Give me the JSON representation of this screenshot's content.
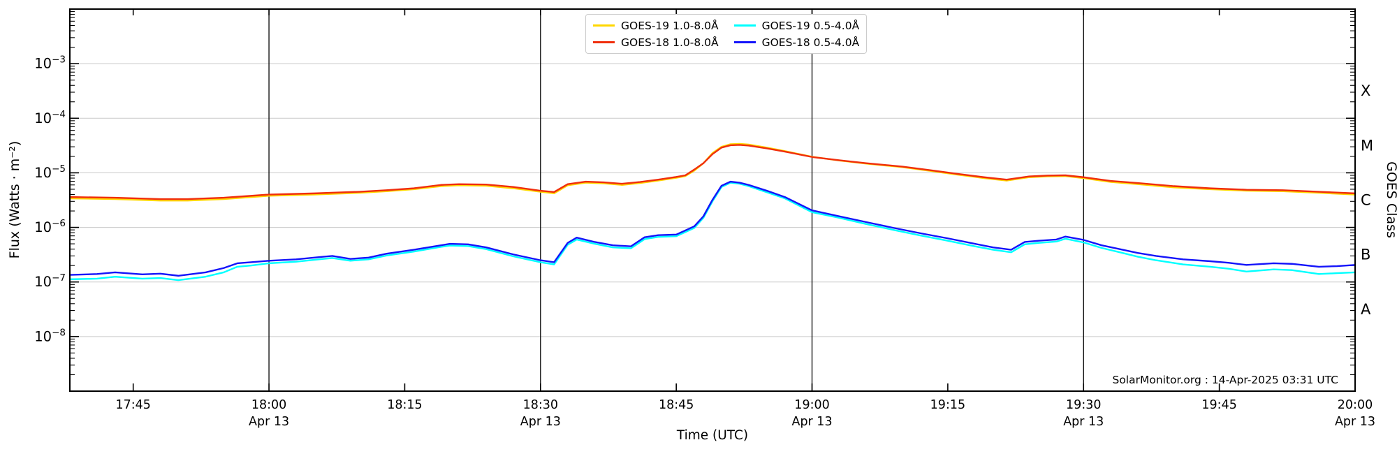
{
  "figure": {
    "credit": "SolarMonitor.org : 14-Apr-2025 03:31 UTC"
  },
  "axes": {
    "xlabel": "Time (UTC)",
    "ylabel_left": "Flux (Watts · m⁻²)",
    "ylabel_right": "GOES Class"
  },
  "legend": {
    "items": [
      {
        "label": "GOES-19 1.0-8.0Å",
        "color": "#FFD700"
      },
      {
        "label": "GOES-18 1.0-8.0Å",
        "color": "#F02E0C"
      },
      {
        "label": "GOES-19 0.5-4.0Å",
        "color": "#00FFFF"
      },
      {
        "label": "GOES-18 0.5-4.0Å",
        "color": "#1414FA"
      }
    ]
  },
  "chart_data": {
    "type": "line",
    "title": "",
    "xlabel": "Time (UTC)",
    "ylabel": "Flux (Watts · m⁻²)",
    "ylabel_right": "GOES Class",
    "grid": true,
    "legend_position": "top-center",
    "x_axis": {
      "unit": "minutes since 00:00 UTC, Apr 13",
      "range": [
        1058,
        1200
      ],
      "ticks": [
        {
          "minutes": 1065,
          "label": "17:45",
          "date": null,
          "vline": false
        },
        {
          "minutes": 1080,
          "label": "18:00",
          "date": "Apr 13",
          "vline": true
        },
        {
          "minutes": 1095,
          "label": "18:15",
          "date": null,
          "vline": false
        },
        {
          "minutes": 1110,
          "label": "18:30",
          "date": "Apr 13",
          "vline": true
        },
        {
          "minutes": 1125,
          "label": "18:45",
          "date": null,
          "vline": false
        },
        {
          "minutes": 1140,
          "label": "19:00",
          "date": "Apr 13",
          "vline": true
        },
        {
          "minutes": 1155,
          "label": "19:15",
          "date": null,
          "vline": false
        },
        {
          "minutes": 1170,
          "label": "19:30",
          "date": "Apr 13",
          "vline": true
        },
        {
          "minutes": 1185,
          "label": "19:45",
          "date": null,
          "vline": false
        },
        {
          "minutes": 1200,
          "label": "20:00",
          "date": "Apr 13",
          "vline": false
        }
      ]
    },
    "y_axis": {
      "scale": "log",
      "range": [
        1e-09,
        0.01
      ],
      "labeled_exponents": [
        -3,
        -4,
        -5,
        -6,
        -7,
        -8
      ]
    },
    "goes_class_labels": [
      {
        "label": "X",
        "mid_exponent": -3.5
      },
      {
        "label": "M",
        "mid_exponent": -4.5
      },
      {
        "label": "C",
        "mid_exponent": -5.5
      },
      {
        "label": "B",
        "mid_exponent": -6.5
      },
      {
        "label": "A",
        "mid_exponent": -7.5
      }
    ],
    "series": [
      {
        "name": "GOES-19 1.0-8.0Å",
        "color": "#FFD700",
        "x": [
          1058,
          1063,
          1068,
          1071,
          1075,
          1080,
          1085,
          1090,
          1093,
          1096,
          1099,
          1101,
          1104,
          1107,
          1110,
          1111.5,
          1113,
          1115,
          1117,
          1119,
          1121,
          1123,
          1125,
          1126,
          1127,
          1128,
          1129,
          1130,
          1131,
          1132,
          1133,
          1135,
          1137,
          1140,
          1143,
          1146,
          1150,
          1153,
          1156,
          1159,
          1161.5,
          1164,
          1166,
          1168,
          1170,
          1173,
          1176,
          1180,
          1184,
          1188,
          1192,
          1196,
          1200
        ],
        "y": [
          3.4e-06,
          3.3e-06,
          3.1e-06,
          3.1e-06,
          3.3e-06,
          3.8e-06,
          4e-06,
          4.3e-06,
          4.6e-06,
          5e-06,
          5.7e-06,
          5.9e-06,
          5.8e-06,
          5.2e-06,
          4.5e-06,
          4.2e-06,
          5.9e-06,
          6.6e-06,
          6.4e-06,
          6e-06,
          6.5e-06,
          7.2e-06,
          8.1e-06,
          8.7e-06,
          1.1e-05,
          1.5e-05,
          2.3e-05,
          3e-05,
          3.35e-05,
          3.4e-05,
          3.3e-05,
          2.9e-05,
          2.5e-05,
          1.97e-05,
          1.68e-05,
          1.47e-05,
          1.27e-05,
          1.09e-05,
          9.3e-06,
          8e-06,
          7.2e-06,
          8.3e-06,
          8.6e-06,
          8.7e-06,
          8e-06,
          6.8e-06,
          6.2e-06,
          5.4e-06,
          5e-06,
          4.7e-06,
          4.6e-06,
          4.3e-06,
          4e-06
        ]
      },
      {
        "name": "GOES-18 1.0-8.0Å",
        "color": "#F02E0C",
        "x": [
          1058,
          1063,
          1068,
          1071,
          1075,
          1080,
          1085,
          1090,
          1093,
          1096,
          1099,
          1101,
          1104,
          1107,
          1110,
          1111.5,
          1113,
          1115,
          1117,
          1119,
          1121,
          1123,
          1125,
          1126,
          1127,
          1128,
          1129,
          1130,
          1131,
          1132,
          1133,
          1135,
          1137,
          1140,
          1143,
          1146,
          1150,
          1153,
          1156,
          1159,
          1161.5,
          1164,
          1166,
          1168,
          1170,
          1173,
          1176,
          1180,
          1184,
          1188,
          1192,
          1196,
          1200
        ],
        "y": [
          3.6e-06,
          3.5e-06,
          3.3e-06,
          3.3e-06,
          3.5e-06,
          4e-06,
          4.2e-06,
          4.5e-06,
          4.8e-06,
          5.2e-06,
          6e-06,
          6.2e-06,
          6.1e-06,
          5.5e-06,
          4.7e-06,
          4.45e-06,
          6.2e-06,
          6.9e-06,
          6.7e-06,
          6.3e-06,
          6.8e-06,
          7.5e-06,
          8.4e-06,
          9e-06,
          1.15e-05,
          1.5e-05,
          2.2e-05,
          2.9e-05,
          3.2e-05,
          3.25e-05,
          3.15e-05,
          2.8e-05,
          2.45e-05,
          1.95e-05,
          1.7e-05,
          1.5e-05,
          1.3e-05,
          1.12e-05,
          9.6e-06,
          8.3e-06,
          7.5e-06,
          8.6e-06,
          8.9e-06,
          9e-06,
          8.3e-06,
          7.1e-06,
          6.5e-06,
          5.7e-06,
          5.2e-06,
          4.9e-06,
          4.8e-06,
          4.5e-06,
          4.2e-06
        ]
      },
      {
        "name": "GOES-19 0.5-4.0Å",
        "color": "#00FFFF",
        "x": [
          1058,
          1061,
          1063,
          1066,
          1068,
          1070,
          1073,
          1075,
          1076.5,
          1078,
          1080,
          1083,
          1086,
          1087,
          1089,
          1091,
          1093,
          1096,
          1099,
          1100,
          1102,
          1104,
          1107,
          1110,
          1111.5,
          1113,
          1114,
          1116,
          1118,
          1120,
          1121.5,
          1123,
          1125,
          1126,
          1127,
          1128,
          1129,
          1130,
          1131,
          1132,
          1133,
          1135,
          1137,
          1140,
          1143,
          1146,
          1149,
          1152,
          1155,
          1158,
          1160,
          1162,
          1163.5,
          1165,
          1167,
          1168,
          1170,
          1172,
          1174,
          1176,
          1178,
          1181,
          1184,
          1186,
          1188,
          1191,
          1193,
          1196,
          1198,
          1200
        ],
        "y": [
          1.12e-07,
          1.15e-07,
          1.25e-07,
          1.15e-07,
          1.18e-07,
          1.08e-07,
          1.25e-07,
          1.5e-07,
          1.9e-07,
          2e-07,
          2.2e-07,
          2.35e-07,
          2.65e-07,
          2.75e-07,
          2.45e-07,
          2.6e-07,
          3.05e-07,
          3.6e-07,
          4.4e-07,
          4.65e-07,
          4.55e-07,
          4e-07,
          2.95e-07,
          2.3e-07,
          2.1e-07,
          4.8e-07,
          6e-07,
          5e-07,
          4.3e-07,
          4.15e-07,
          6.1e-07,
          6.7e-07,
          6.9e-07,
          8.2e-07,
          9.8e-07,
          1.5e-06,
          3e-06,
          5.5e-06,
          6.6e-06,
          6.3e-06,
          5.7e-06,
          4.4e-06,
          3.4e-06,
          1.9e-06,
          1.5e-06,
          1.15e-06,
          9e-07,
          7.1e-07,
          5.7e-07,
          4.5e-07,
          3.9e-07,
          3.5e-07,
          4.9e-07,
          5.2e-07,
          5.5e-07,
          6.2e-07,
          5.3e-07,
          4.2e-07,
          3.5e-07,
          2.9e-07,
          2.5e-07,
          2.1e-07,
          1.9e-07,
          1.75e-07,
          1.55e-07,
          1.7e-07,
          1.65e-07,
          1.4e-07,
          1.45e-07,
          1.5e-07
        ]
      },
      {
        "name": "GOES-18 0.5-4.0Å",
        "color": "#1414FA",
        "x": [
          1058,
          1061,
          1063,
          1066,
          1068,
          1070,
          1073,
          1075,
          1076.5,
          1078,
          1080,
          1083,
          1086,
          1087,
          1089,
          1091,
          1093,
          1096,
          1099,
          1100,
          1102,
          1104,
          1107,
          1110,
          1111.5,
          1113,
          1114,
          1116,
          1118,
          1120,
          1121.5,
          1123,
          1125,
          1126,
          1127,
          1128,
          1129,
          1130,
          1131,
          1132,
          1133,
          1135,
          1137,
          1140,
          1143,
          1146,
          1149,
          1152,
          1155,
          1158,
          1160,
          1162,
          1163.5,
          1165,
          1167,
          1168,
          1170,
          1172,
          1174,
          1176,
          1178,
          1181,
          1184,
          1186,
          1188,
          1191,
          1193,
          1196,
          1198,
          1200
        ],
        "y": [
          1.35e-07,
          1.4e-07,
          1.5e-07,
          1.38e-07,
          1.42e-07,
          1.3e-07,
          1.5e-07,
          1.8e-07,
          2.2e-07,
          2.3e-07,
          2.45e-07,
          2.6e-07,
          2.9e-07,
          3e-07,
          2.65e-07,
          2.8e-07,
          3.3e-07,
          3.9e-07,
          4.7e-07,
          5e-07,
          4.9e-07,
          4.3e-07,
          3.2e-07,
          2.5e-07,
          2.3e-07,
          5.2e-07,
          6.5e-07,
          5.4e-07,
          4.7e-07,
          4.5e-07,
          6.6e-07,
          7.2e-07,
          7.4e-07,
          8.8e-07,
          1.05e-06,
          1.6e-06,
          3.2e-06,
          5.8e-06,
          6.9e-06,
          6.6e-06,
          6e-06,
          4.7e-06,
          3.6e-06,
          2.05e-06,
          1.6e-06,
          1.25e-06,
          9.8e-07,
          7.8e-07,
          6.3e-07,
          5e-07,
          4.3e-07,
          3.9e-07,
          5.4e-07,
          5.7e-07,
          6e-07,
          6.8e-07,
          5.9e-07,
          4.7e-07,
          4e-07,
          3.4e-07,
          3e-07,
          2.6e-07,
          2.4e-07,
          2.25e-07,
          2.05e-07,
          2.2e-07,
          2.15e-07,
          1.9e-07,
          1.95e-07,
          2.05e-07
        ]
      }
    ],
    "annotations": [
      "SolarMonitor.org : 14-Apr-2025 03:31 UTC"
    ]
  }
}
